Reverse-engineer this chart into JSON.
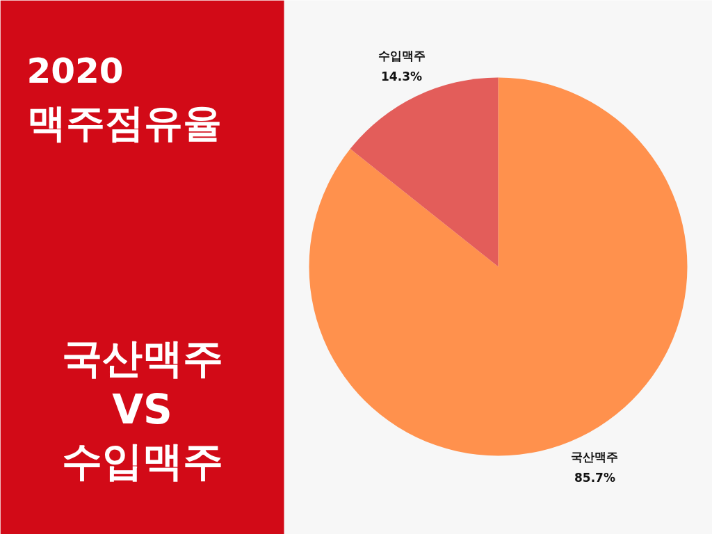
{
  "chart_data": {
    "type": "pie",
    "title": "2020",
    "subtitle": "맥주점유율",
    "categories": [
      "국산맥주",
      "수입맥주"
    ],
    "values": [
      85.7,
      14.3
    ],
    "colors": [
      "#ff914d",
      "#e35d5a"
    ],
    "value_labels": [
      "85.7%",
      "14.3%"
    ],
    "annotations": [
      "국산맥주",
      "VS",
      "수입맥주"
    ]
  }
}
